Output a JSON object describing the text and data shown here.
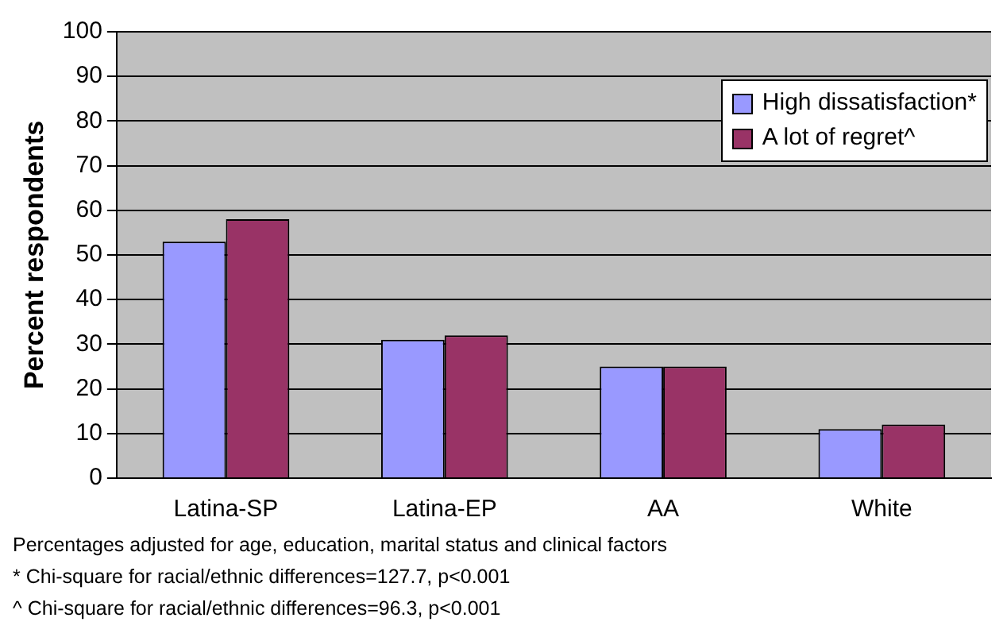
{
  "chart_data": {
    "type": "bar",
    "ylabel": "Percent respondents",
    "categories": [
      "Latina-SP",
      "Latina-EP",
      "AA",
      "White"
    ],
    "series": [
      {
        "name": "High dissatisfaction*",
        "color": "#9999ff",
        "values": [
          53,
          31,
          25,
          11
        ]
      },
      {
        "name": "A lot of regret^",
        "color": "#993366",
        "values": [
          58,
          32,
          25,
          12
        ]
      }
    ],
    "ylim": [
      0,
      100
    ],
    "yticks": [
      0,
      10,
      20,
      30,
      40,
      50,
      60,
      70,
      80,
      90,
      100
    ],
    "grid": "y",
    "legend": "top right",
    "annotations": [
      "Percentages adjusted for age, education, marital status and clinical factors",
      "* Chi-square for racial/ethnic differences=127.7, p<0.001",
      "^ Chi-square for racial/ethnic differences=96.3, p<0.001"
    ]
  }
}
